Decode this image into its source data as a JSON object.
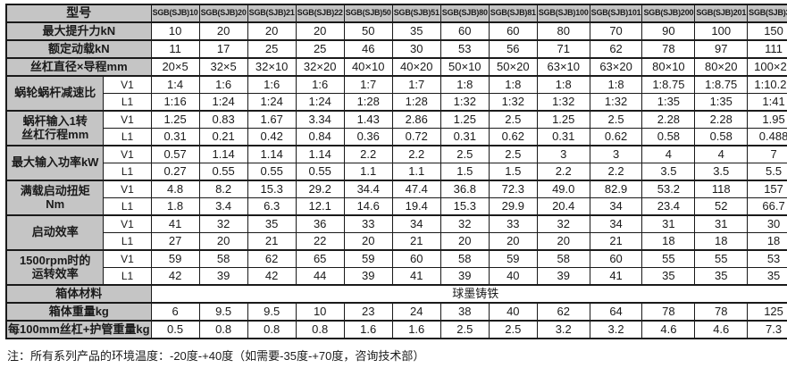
{
  "colors": {
    "header_bg": "#c5c5c5",
    "cell_bg": "#ffffff",
    "border": "#1a1a1a",
    "text": "#1a1a1a"
  },
  "table": {
    "corner_label": "型号",
    "models": [
      "SGB(SJB)10",
      "SGB(SJB)20",
      "SGB(SJB)21",
      "SGB(SJB)22",
      "SGB(SJB)50",
      "SGB(SJB)51",
      "SGB(SJB)80",
      "SGB(SJB)81",
      "SGB(SJB)100",
      "SGB(SJB)101",
      "SGB(SJB)200",
      "SGB(SJB)201",
      "SGB(SJB)300"
    ],
    "rows": [
      {
        "kind": "simple",
        "label": [
          "最大提升力kN"
        ],
        "values": [
          "10",
          "20",
          "20",
          "20",
          "50",
          "35",
          "60",
          "60",
          "80",
          "70",
          "90",
          "100",
          "150"
        ]
      },
      {
        "kind": "simple",
        "label": [
          "额定动载kN"
        ],
        "values": [
          "11",
          "17",
          "25",
          "25",
          "46",
          "30",
          "53",
          "56",
          "71",
          "62",
          "78",
          "97",
          "111"
        ]
      },
      {
        "kind": "simple",
        "label": [
          "丝杠直径×导程mm"
        ],
        "values": [
          "20×5",
          "32×5",
          "32×10",
          "32×20",
          "40×10",
          "40×20",
          "50×10",
          "50×20",
          "63×10",
          "63×20",
          "80×10",
          "80×20",
          "100×20"
        ]
      },
      {
        "kind": "group",
        "label": [
          "蜗轮蜗杆减速比"
        ],
        "subs": [
          {
            "tag": "V1",
            "values": [
              "1:4",
              "1:6",
              "1:6",
              "1:6",
              "1:7",
              "1:7",
              "1:8",
              "1:8",
              "1:8",
              "1:8",
              "1:8.75",
              "1:8.75",
              "1:10.25"
            ]
          },
          {
            "tag": "L1",
            "values": [
              "1:16",
              "1:24",
              "1:24",
              "1:24",
              "1:28",
              "1:28",
              "1:32",
              "1:32",
              "1:32",
              "1:32",
              "1:35",
              "1:35",
              "1:41"
            ]
          }
        ]
      },
      {
        "kind": "group",
        "label": [
          "蜗杆输入1转",
          "丝杠行程mm"
        ],
        "subs": [
          {
            "tag": "V1",
            "values": [
              "1.25",
              "0.83",
              "1.67",
              "3.34",
              "1.43",
              "2.86",
              "1.25",
              "2.5",
              "1.25",
              "2.5",
              "2.28",
              "2.28",
              "1.95"
            ]
          },
          {
            "tag": "L1",
            "values": [
              "0.31",
              "0.21",
              "0.42",
              "0.84",
              "0.36",
              "0.72",
              "0.31",
              "0.62",
              "0.31",
              "0.62",
              "0.58",
              "0.58",
              "0.488"
            ]
          }
        ]
      },
      {
        "kind": "group",
        "label": [
          "最大输入功率kW"
        ],
        "subs": [
          {
            "tag": "V1",
            "values": [
              "0.57",
              "1.14",
              "1.14",
              "1.14",
              "2.2",
              "2.2",
              "2.5",
              "2.5",
              "3",
              "3",
              "4",
              "4",
              "7"
            ]
          },
          {
            "tag": "L1",
            "values": [
              "0.27",
              "0.55",
              "0.55",
              "0.55",
              "1.1",
              "1.1",
              "1.5",
              "1.5",
              "2.2",
              "2.2",
              "3.5",
              "3.5",
              "5.5"
            ]
          }
        ]
      },
      {
        "kind": "group",
        "label": [
          "满载启动扭矩",
          "Nm"
        ],
        "subs": [
          {
            "tag": "V1",
            "values": [
              "4.8",
              "8.2",
              "15.3",
              "29.2",
              "34.4",
              "47.4",
              "36.8",
              "72.3",
              "49.0",
              "82.9",
              "53.2",
              "118",
              "157"
            ]
          },
          {
            "tag": "L1",
            "values": [
              "1.8",
              "3.4",
              "6.3",
              "12.1",
              "14.6",
              "19.4",
              "15.3",
              "29.9",
              "20.4",
              "34",
              "23.4",
              "52",
              "66.7"
            ]
          }
        ]
      },
      {
        "kind": "group",
        "label": [
          "启动效率"
        ],
        "subs": [
          {
            "tag": "V1",
            "values": [
              "41",
              "32",
              "35",
              "36",
              "33",
              "34",
              "32",
              "33",
              "32",
              "34",
              "31",
              "31",
              "30"
            ]
          },
          {
            "tag": "L1",
            "values": [
              "27",
              "20",
              "21",
              "22",
              "20",
              "21",
              "20",
              "20",
              "20",
              "21",
              "18",
              "18",
              "18"
            ]
          }
        ]
      },
      {
        "kind": "group",
        "label": [
          "1500rpm时的",
          "运转效率"
        ],
        "subs": [
          {
            "tag": "V1",
            "values": [
              "59",
              "58",
              "62",
              "65",
              "59",
              "60",
              "58",
              "59",
              "58",
              "60",
              "55",
              "55",
              "53"
            ]
          },
          {
            "tag": "L1",
            "values": [
              "42",
              "39",
              "42",
              "44",
              "39",
              "41",
              "39",
              "40",
              "39",
              "41",
              "35",
              "35",
              "35"
            ]
          }
        ]
      },
      {
        "kind": "merged",
        "label": [
          "箱体材料"
        ],
        "value": "球墨铸铁"
      },
      {
        "kind": "simple",
        "label": [
          "箱体重量kg"
        ],
        "values": [
          "6",
          "9.5",
          "9.5",
          "10",
          "23",
          "24",
          "38",
          "40",
          "62",
          "64",
          "78",
          "78",
          "125"
        ]
      },
      {
        "kind": "simple",
        "label": [
          "每100mm丝杠+护管重量kg"
        ],
        "values": [
          "0.5",
          "0.8",
          "0.8",
          "0.8",
          "1.6",
          "1.6",
          "2.5",
          "2.5",
          "3.2",
          "3.2",
          "4.6",
          "4.6",
          "7.3"
        ]
      }
    ]
  },
  "note": "注：所有系列产品的环境温度：-20度-+40度（如需要-35度-+70度，咨询技术部）"
}
